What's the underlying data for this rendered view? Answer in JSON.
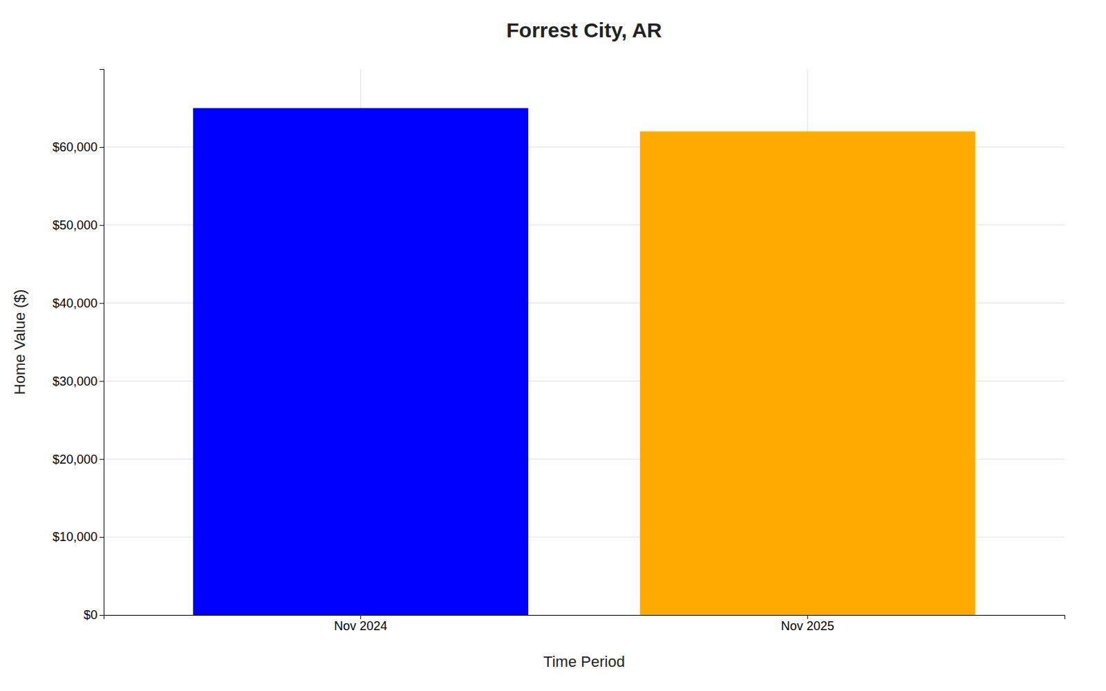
{
  "chart_data": {
    "type": "bar",
    "title": "Forrest City, AR",
    "categories": [
      "Nov 2024",
      "Nov 2025"
    ],
    "values": [
      65000,
      62000
    ],
    "colors": [
      "#0000ff",
      "#ffaa00"
    ],
    "xlabel": "Time Period",
    "ylabel": "Home Value ($)",
    "ylim": [
      0,
      70000
    ],
    "yticks": [
      {
        "value": 0,
        "label": "$0"
      },
      {
        "value": 10000,
        "label": "$10,000"
      },
      {
        "value": 20000,
        "label": "$20,000"
      },
      {
        "value": 30000,
        "label": "$30,000"
      },
      {
        "value": 40000,
        "label": "$40,000"
      },
      {
        "value": 50000,
        "label": "$50,000"
      },
      {
        "value": 60000,
        "label": "$60,000"
      }
    ],
    "grid": true
  }
}
